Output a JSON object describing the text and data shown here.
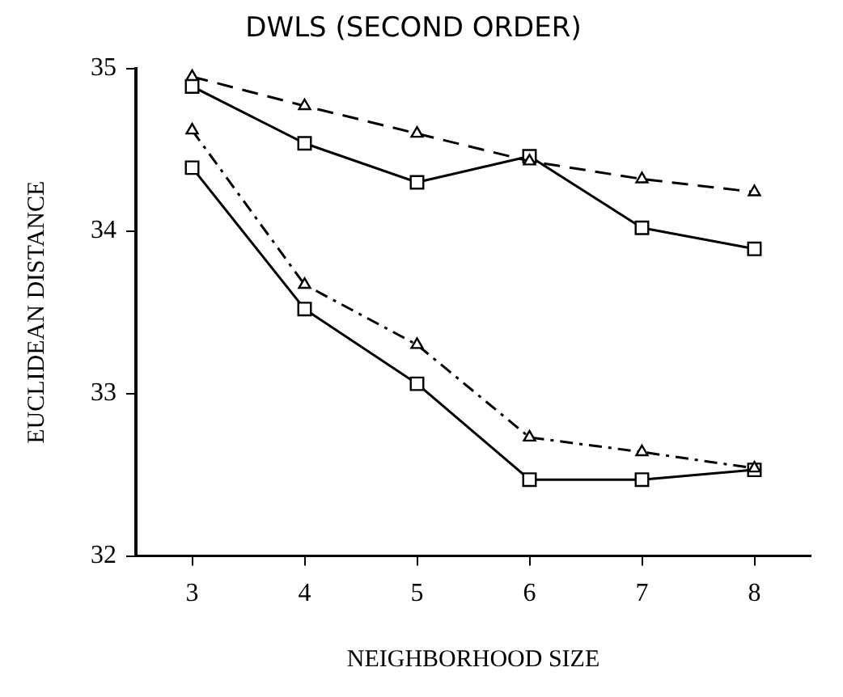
{
  "chart_data": {
    "type": "line",
    "title": "DWLS (SECOND ORDER)",
    "xlabel": "NEIGHBORHOOD SIZE",
    "ylabel": "EUCLIDEAN DISTANCE",
    "x": [
      3,
      4,
      5,
      6,
      7,
      8
    ],
    "xlim": [
      2.5,
      8.5
    ],
    "xticks": [
      3,
      4,
      5,
      6,
      7,
      8
    ],
    "ylim": [
      32,
      35
    ],
    "yticks": [
      32,
      33,
      34,
      35
    ],
    "grid": false,
    "legend": false,
    "series": [
      {
        "color": "#000000",
        "marker": "triangle",
        "line_style": "dashed",
        "values": [
          34.95,
          34.77,
          34.6,
          34.43,
          34.32,
          34.24
        ]
      },
      {
        "color": "#000000",
        "marker": "square",
        "line_style": "solid",
        "values": [
          34.89,
          34.54,
          34.3,
          34.46,
          34.02,
          33.89
        ]
      },
      {
        "color": "#000000",
        "marker": "triangle",
        "line_style": "dotted",
        "values": [
          34.62,
          33.67,
          33.3,
          32.73,
          32.64,
          32.54
        ]
      },
      {
        "color": "#000000",
        "marker": "square",
        "line_style": "solid",
        "values": [
          34.39,
          33.52,
          33.06,
          32.47,
          32.47,
          32.53
        ]
      }
    ]
  }
}
